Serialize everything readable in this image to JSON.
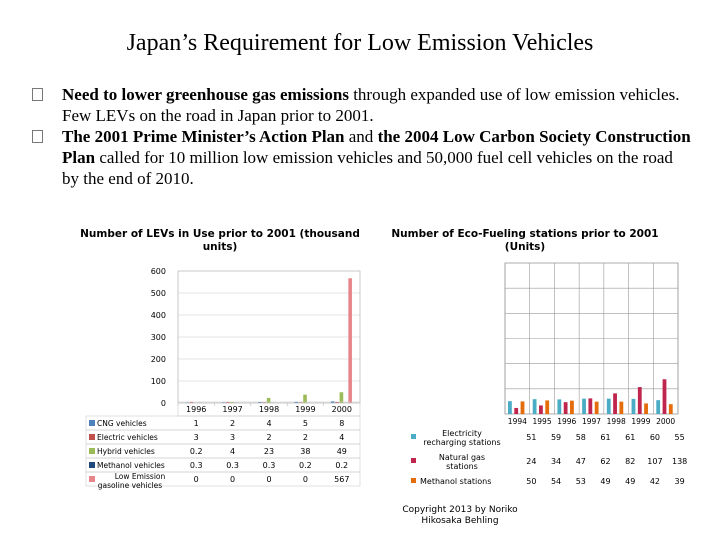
{
  "slide": {
    "title": "Japan’s Requirement for Low Emission Vehicles",
    "bullets": [
      {
        "bold": "Need to lower greenhouse gas emissions",
        "text": " through expanded use of low emission vehicles.  Few LEVs on the road in Japan prior to 2001."
      },
      {
        "bold": "The 2001 Prime Minister’s Action Plan",
        "text": " and ",
        "bold2": "the 2004 Low Carbon Society Construction Plan",
        "text2": " called for 10 million low emission vehicles and 50,000 fuel cell vehicles on the road by the end of 2010."
      }
    ],
    "footer": "Copyright 2013 by Noriko Hikosaka Behling"
  },
  "chart_data": [
    {
      "type": "bar",
      "title": "Number of LEVs in Use  prior to 2001 (thousand units)",
      "categories": [
        "1996",
        "1997",
        "1998",
        "1999",
        "2000"
      ],
      "ylim": [
        0,
        600
      ],
      "yticks": [
        "0",
        "100",
        "200",
        "300",
        "400",
        "500",
        "600"
      ],
      "series": [
        {
          "name": "CNG vehicles",
          "color": "#4f81bd",
          "values": [
            1,
            2,
            4,
            5,
            8
          ]
        },
        {
          "name": "Electric vehicles",
          "color": "#c0504d",
          "values": [
            3,
            3,
            2,
            2,
            4
          ]
        },
        {
          "name": "Hybrid vehicles",
          "color": "#9bbb59",
          "values": [
            0.2,
            4,
            23,
            38,
            49
          ]
        },
        {
          "name": "Methanol vehicles",
          "color": "#1f497d",
          "values": [
            0.3,
            0.3,
            0.3,
            0.2,
            0.2
          ]
        },
        {
          "name": "Low Emission gasoline vehicles",
          "color": "#e6868a",
          "values": [
            0,
            0,
            0,
            0,
            567
          ]
        }
      ],
      "display_values": [
        [
          "1",
          "2",
          "4",
          "5",
          "8"
        ],
        [
          "3",
          "3",
          "2",
          "2",
          "4"
        ],
        [
          "0.2",
          "4",
          "23",
          "38",
          "49"
        ],
        [
          "0.3",
          "0.3",
          "0.3",
          "0.2",
          "0.2"
        ],
        [
          "0",
          "0",
          "0",
          "0",
          "567"
        ]
      ]
    },
    {
      "type": "bar",
      "title": "Number of Eco-Fueling stations prior to 2001 (Units)",
      "categories": [
        "1994",
        "1995",
        "1996",
        "1997",
        "1998",
        "1999",
        "2000"
      ],
      "ylim": [
        0,
        600
      ],
      "series": [
        {
          "name": "Electricity recharging stations",
          "color": "#4bacc6",
          "values": [
            51,
            59,
            58,
            61,
            61,
            60,
            55
          ]
        },
        {
          "name": "Natural gas stations",
          "color": "#c0254d",
          "values": [
            24,
            34,
            47,
            62,
            82,
            107,
            138
          ]
        },
        {
          "name": "Methanol stations",
          "color": "#e46c0a",
          "values": [
            50,
            54,
            53,
            49,
            49,
            42,
            39
          ]
        }
      ]
    }
  ]
}
